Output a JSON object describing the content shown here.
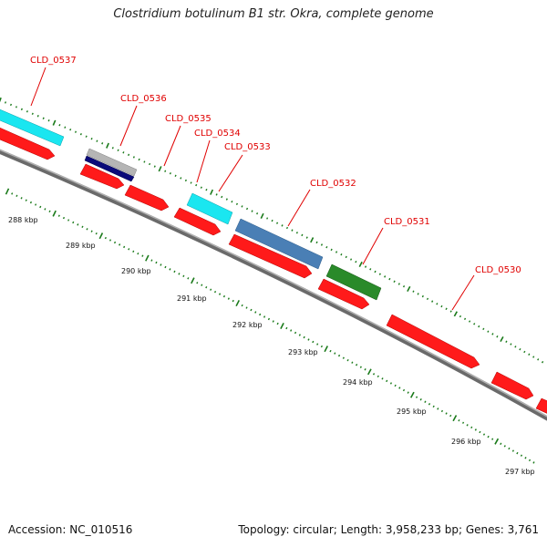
{
  "title": "Clostridium botulinum B1 str. Okra, complete genome",
  "accession": "Accession: NC_010516",
  "summary": "Topology: circular; Length: 3,958,233 bp; Genes: 3,761",
  "colors": {
    "backbone": "#7a7a7a",
    "label": "#e00000",
    "tick": "#1a7a1a",
    "cds": "#ff1a1a",
    "gray": "#b5b5b5",
    "navy": "#0a0a7a",
    "cyan": "#1ae6f0",
    "steelblue": "#4a7fb5",
    "green": "#2a8a2a"
  },
  "genes": [
    {
      "id": "CLD_0537",
      "label": "CLD_0537"
    },
    {
      "id": "CLD_0536",
      "label": "CLD_0536"
    },
    {
      "id": "CLD_0535",
      "label": "CLD_0535"
    },
    {
      "id": "CLD_0534",
      "label": "CLD_0534"
    },
    {
      "id": "CLD_0533",
      "label": "CLD_0533"
    },
    {
      "id": "CLD_0532",
      "label": "CLD_0532"
    },
    {
      "id": "CLD_0531",
      "label": "CLD_0531"
    },
    {
      "id": "CLD_0530",
      "label": "CLD_0530"
    }
  ],
  "scale_labels": [
    "288 kbp",
    "289 kbp",
    "290 kbp",
    "291 kbp",
    "292 kbp",
    "293 kbp",
    "294 kbp",
    "295 kbp",
    "296 kbp",
    "297 kbp"
  ]
}
